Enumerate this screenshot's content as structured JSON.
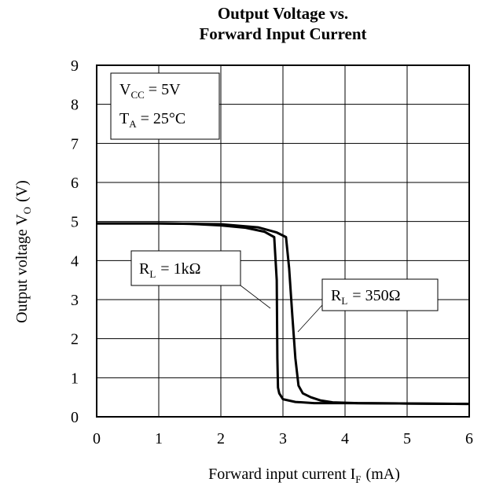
{
  "chart_data": {
    "type": "line",
    "title_line1": "Output Voltage vs.",
    "title_line2": "Forward Input Current",
    "xlabel": "Forward input current I",
    "xlabel_sub": "F",
    "xlabel_unit": "(mA)",
    "ylabel": "Output voltage V",
    "ylabel_sub": "O",
    "ylabel_unit": "(V)",
    "xlim": [
      0,
      6
    ],
    "ylim": [
      0,
      9
    ],
    "xticks": [
      "0",
      "1",
      "2",
      "3",
      "4",
      "5",
      "6"
    ],
    "yticks": [
      "0",
      "1",
      "2",
      "3",
      "4",
      "5",
      "6",
      "7",
      "8",
      "9"
    ],
    "grid": true,
    "conditions": {
      "vcc_symbol": "V",
      "vcc_sub": "CC",
      "vcc_value": "= 5V",
      "ta_symbol": "T",
      "ta_sub": "A",
      "ta_value": "= 25°C"
    },
    "series": [
      {
        "name": "R_L = 1kΩ",
        "label_symbol": "R",
        "label_sub": "L",
        "label_value": "= 1kΩ",
        "x": [
          0,
          1.0,
          1.5,
          2.0,
          2.4,
          2.7,
          2.86,
          2.9,
          2.91,
          2.92,
          2.94,
          3.0,
          3.2,
          3.5,
          4.0,
          5.0,
          6.0
        ],
        "y": [
          4.95,
          4.95,
          4.94,
          4.9,
          4.84,
          4.74,
          4.6,
          3.5,
          1.5,
          0.75,
          0.6,
          0.45,
          0.38,
          0.35,
          0.35,
          0.34,
          0.33
        ]
      },
      {
        "name": "R_L = 350Ω",
        "label_symbol": "R",
        "label_sub": "L",
        "label_value": "= 350Ω",
        "x": [
          0,
          1.0,
          2.0,
          2.6,
          2.9,
          3.05,
          3.1,
          3.15,
          3.2,
          3.25,
          3.32,
          3.45,
          3.6,
          3.8,
          4.2,
          5.0,
          6.0
        ],
        "y": [
          4.95,
          4.95,
          4.93,
          4.85,
          4.72,
          4.6,
          3.8,
          2.6,
          1.5,
          0.8,
          0.6,
          0.5,
          0.42,
          0.37,
          0.35,
          0.34,
          0.33
        ]
      }
    ]
  }
}
